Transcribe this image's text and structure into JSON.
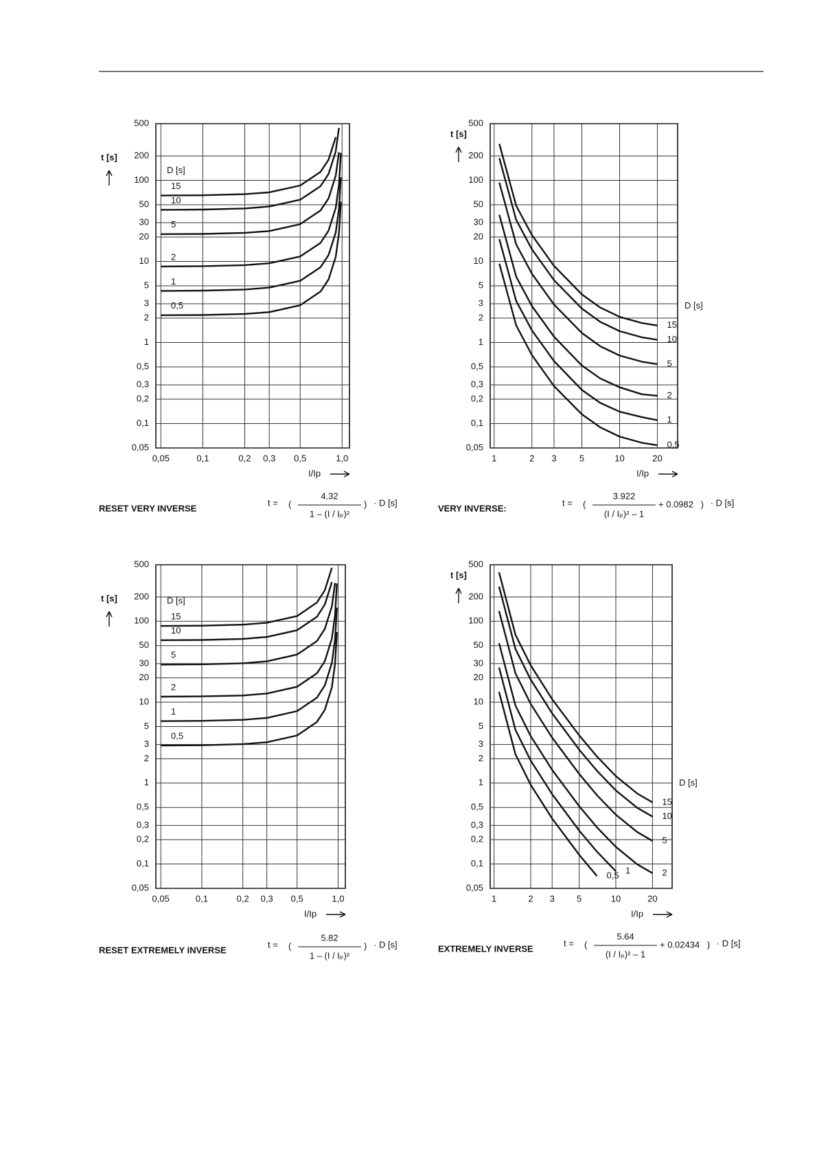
{
  "chart_data": [
    {
      "type": "line",
      "caption": "RESET VERY INVERSE",
      "xscale": "log",
      "yscale": "log",
      "grid": true,
      "legend": "left",
      "legend_title": "D [s]",
      "ylabel": "t [s]",
      "xlabel": "I/Ip",
      "formula": {
        "lhs": "t =",
        "numerator": "4.32",
        "denominator": "1 – (I / Iₚ)²",
        "rhs": "· D  [s]"
      },
      "xlim": [
        0.046,
        1.13
      ],
      "ylim": [
        0.05,
        500
      ],
      "xticks": [
        {
          "value": 0.05,
          "label": "0,05"
        },
        {
          "value": 0.1,
          "label": "0,1"
        },
        {
          "value": 0.2,
          "label": "0,2"
        },
        {
          "value": 0.3,
          "label": "0,3"
        },
        {
          "value": 0.5,
          "label": "0,5"
        },
        {
          "value": 1.0,
          "label": "1,0"
        }
      ],
      "yticks": [
        500,
        200,
        100,
        50,
        30,
        20,
        10,
        5,
        3,
        2,
        1,
        {
          "value": 0.5,
          "label": "0,5"
        },
        {
          "value": 0.3,
          "label": "0,3"
        },
        {
          "value": 0.2,
          "label": "0,2"
        },
        {
          "value": 0.1,
          "label": "0,1"
        },
        {
          "value": 0.05,
          "label": "0,05"
        }
      ],
      "x": [
        0.05,
        0.1,
        0.2,
        0.3,
        0.5,
        0.7,
        0.8,
        0.9,
        0.95,
        0.98
      ],
      "series": [
        {
          "name": "15",
          "color": "#111111",
          "values": [
            65,
            65.5,
            67.5,
            71.2,
            86.4,
            127,
            180,
            341,
            null,
            null
          ]
        },
        {
          "name": "10",
          "color": "#111111",
          "values": [
            43.3,
            43.6,
            45,
            47.5,
            57.6,
            84.7,
            120,
            227,
            443,
            null
          ]
        },
        {
          "name": "5",
          "color": "#111111",
          "values": [
            21.7,
            21.8,
            22.5,
            23.7,
            28.8,
            42.4,
            60,
            114,
            222,
            null
          ]
        },
        {
          "name": "2",
          "color": "#111111",
          "values": [
            8.66,
            8.73,
            9,
            9.49,
            11.5,
            16.9,
            24,
            45.5,
            88.6,
            218
          ]
        },
        {
          "name": "1",
          "color": "#111111",
          "values": [
            4.33,
            4.36,
            4.5,
            4.75,
            5.76,
            8.47,
            12,
            22.7,
            44.3,
            109
          ]
        },
        {
          "name": "0,5",
          "color": "#111111",
          "values": [
            2.17,
            2.18,
            2.25,
            2.37,
            2.88,
            4.24,
            6,
            11.4,
            22.2,
            54.5
          ]
        }
      ]
    },
    {
      "type": "line",
      "caption": "VERY INVERSE:",
      "xscale": "log",
      "yscale": "log",
      "grid": true,
      "legend": "right",
      "legend_title": "D [s]",
      "ylabel": "t [s]",
      "xlabel": "I/Ip",
      "formula": {
        "lhs": "t =",
        "numerator": "3.922",
        "denominator": "(I / Iₚ)² – 1",
        "addend": "+ 0.0982",
        "rhs": "· D  [s]"
      },
      "xlim": [
        0.93,
        29
      ],
      "ylim": [
        0.05,
        500
      ],
      "xticks": [
        1,
        2,
        3,
        5,
        10,
        20
      ],
      "yticks": [
        500,
        200,
        100,
        50,
        30,
        20,
        10,
        5,
        3,
        2,
        1,
        {
          "value": 0.5,
          "label": "0,5"
        },
        {
          "value": 0.3,
          "label": "0,3"
        },
        {
          "value": 0.2,
          "label": "0,2"
        },
        {
          "value": 0.1,
          "label": "0,1"
        },
        {
          "value": 0.05,
          "label": "0,05"
        }
      ],
      "x": [
        1.1,
        1.5,
        2,
        3,
        5,
        7,
        10,
        15,
        20
      ],
      "series": [
        {
          "name": "15",
          "color": "#111111",
          "values": [
            282,
            48.5,
            21.1,
            8.82,
            3.92,
            2.7,
            2.07,
            1.74,
            1.62
          ]
        },
        {
          "name": "10",
          "color": "#111111",
          "values": [
            188,
            32.4,
            14.1,
            5.88,
            2.62,
            1.8,
            1.38,
            1.16,
            1.08
          ]
        },
        {
          "name": "5",
          "color": "#111111",
          "values": [
            93.9,
            16.2,
            7.03,
            2.94,
            1.31,
            0.9,
            0.69,
            0.58,
            0.54
          ]
        },
        {
          "name": "2",
          "color": "#111111",
          "values": [
            37.5,
            6.47,
            2.81,
            1.18,
            0.52,
            0.36,
            0.28,
            0.23,
            0.22
          ]
        },
        {
          "name": "1",
          "color": "#111111",
          "values": [
            18.8,
            3.24,
            1.41,
            0.59,
            0.26,
            0.18,
            0.14,
            0.12,
            0.11
          ]
        },
        {
          "name": "0,5",
          "color": "#111111",
          "values": [
            9.39,
            1.62,
            0.7,
            0.29,
            0.13,
            0.09,
            0.069,
            0.058,
            0.054
          ]
        }
      ]
    },
    {
      "type": "line",
      "caption": "RESET EXTREMELY INVERSE",
      "xscale": "log",
      "yscale": "log",
      "grid": true,
      "legend": "left",
      "legend_title": "D [s]",
      "ylabel": "t [s]",
      "xlabel": "I/Ip",
      "formula": {
        "lhs": "t =",
        "numerator": "5.82",
        "denominator": "1 – (I / Iₚ)²",
        "rhs": "· D  [s]"
      },
      "xlim": [
        0.046,
        1.13
      ],
      "ylim": [
        0.05,
        500
      ],
      "xticks": [
        {
          "value": 0.05,
          "label": "0,05"
        },
        {
          "value": 0.1,
          "label": "0,1"
        },
        {
          "value": 0.2,
          "label": "0,2"
        },
        {
          "value": 0.3,
          "label": "0,3"
        },
        {
          "value": 0.5,
          "label": "0,5"
        },
        {
          "value": 1.0,
          "label": "1,0"
        }
      ],
      "yticks": [
        500,
        200,
        100,
        50,
        30,
        20,
        10,
        5,
        3,
        2,
        1,
        {
          "value": 0.5,
          "label": "0,5"
        },
        {
          "value": 0.3,
          "label": "0,3"
        },
        {
          "value": 0.2,
          "label": "0,2"
        },
        {
          "value": 0.1,
          "label": "0,1"
        },
        {
          "value": 0.05,
          "label": "0,05"
        }
      ],
      "x": [
        0.05,
        0.1,
        0.2,
        0.3,
        0.5,
        0.7,
        0.8,
        0.9,
        0.95,
        0.98
      ],
      "series": [
        {
          "name": "15",
          "color": "#111111",
          "values": [
            87.5,
            88.2,
            90.9,
            95.9,
            116,
            171,
            243,
            459,
            null,
            null
          ]
        },
        {
          "name": "10",
          "color": "#111111",
          "values": [
            58.4,
            58.8,
            60.6,
            64,
            77.6,
            114,
            162,
            306,
            null,
            null
          ]
        },
        {
          "name": "5",
          "color": "#111111",
          "values": [
            29.2,
            29.4,
            30.3,
            32,
            38.8,
            57.1,
            80.8,
            153,
            298,
            null
          ]
        },
        {
          "name": "2",
          "color": "#111111",
          "values": [
            11.7,
            11.8,
            12.1,
            12.8,
            15.5,
            22.8,
            32.3,
            61.3,
            119,
            294
          ]
        },
        {
          "name": "1",
          "color": "#111111",
          "values": [
            5.84,
            5.88,
            6.06,
            6.4,
            7.76,
            11.4,
            16.2,
            30.6,
            59.7,
            147
          ]
        },
        {
          "name": "0,5",
          "color": "#111111",
          "values": [
            2.92,
            2.94,
            3.03,
            3.2,
            3.88,
            5.71,
            8.08,
            15.3,
            29.8,
            73.5
          ]
        }
      ]
    },
    {
      "type": "line",
      "caption": "EXTREMELY INVERSE",
      "xscale": "log",
      "yscale": "log",
      "grid": true,
      "legend": "right",
      "legend_title": "D [s]",
      "ylabel": "t [s]",
      "xlabel": "I/Ip",
      "formula": {
        "lhs": "t =",
        "numerator": "5.64",
        "denominator": "(I / Iₚ)² – 1",
        "addend": "+ 0.02434",
        "rhs": "· D  [s]"
      },
      "xlim": [
        0.93,
        29
      ],
      "ylim": [
        0.05,
        500
      ],
      "xticks": [
        1,
        2,
        3,
        5,
        10,
        20
      ],
      "yticks": [
        500,
        200,
        100,
        50,
        30,
        20,
        10,
        5,
        3,
        2,
        1,
        {
          "value": 0.5,
          "label": "0,5"
        },
        {
          "value": 0.3,
          "label": "0,3"
        },
        {
          "value": 0.2,
          "label": "0,2"
        },
        {
          "value": 0.1,
          "label": "0,1"
        },
        {
          "value": 0.05,
          "label": "0,05"
        }
      ],
      "x": [
        1.1,
        1.5,
        2,
        3,
        5,
        7,
        10,
        15,
        20
      ],
      "series": [
        {
          "name": "15",
          "color": "#111111",
          "values": [
            403,
            68,
            28.6,
            10.9,
            3.89,
            2.13,
            1.22,
            0.743,
            0.578
          ]
        },
        {
          "name": "10",
          "color": "#111111",
          "values": [
            269,
            45.4,
            19,
            7.29,
            2.59,
            1.42,
            0.813,
            0.495,
            0.385
          ]
        },
        {
          "name": "5",
          "color": "#111111",
          "values": [
            134,
            22.7,
            9.52,
            3.65,
            1.3,
            0.709,
            0.407,
            0.248,
            0.193
          ]
        },
        {
          "name": "2",
          "color": "#111111",
          "values": [
            53.8,
            9.07,
            3.81,
            1.46,
            0.518,
            0.284,
            0.163,
            0.099,
            0.077
          ]
        },
        {
          "name": "1",
          "color": "#111111",
          "values": [
            26.9,
            4.54,
            1.9,
            0.73,
            0.259,
            0.142,
            0.0813,
            null,
            null
          ]
        },
        {
          "name": "0,5",
          "color": "#111111",
          "values": [
            13.4,
            2.27,
            0.952,
            0.365,
            0.13,
            0.0709,
            null,
            null,
            null
          ]
        }
      ]
    }
  ]
}
